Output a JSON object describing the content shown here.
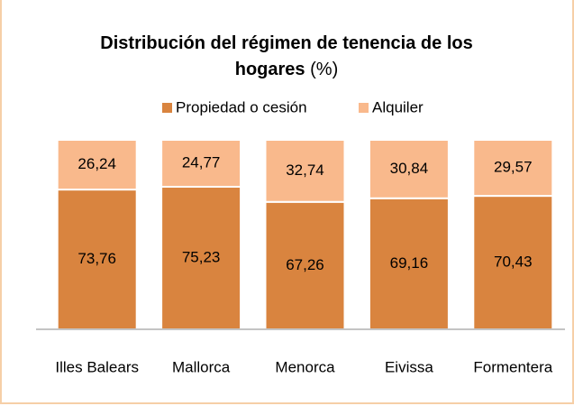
{
  "chart_data": {
    "type": "stacked_bar",
    "title": "Distribución del régimen de tenencia de los hogares",
    "unit": "(%)",
    "categories": [
      "Illes Balears",
      "Mallorca",
      "Menorca",
      "Eivissa",
      "Formentera"
    ],
    "series": [
      {
        "name": "Propiedad o cesión",
        "color": "#d9843f",
        "values": [
          73.76,
          75.23,
          67.26,
          69.16,
          70.43
        ],
        "value_labels": [
          "73,76",
          "75,23",
          "67,26",
          "69,16",
          "70,43"
        ]
      },
      {
        "name": "Alquiler",
        "color": "#f9b98c",
        "values": [
          26.24,
          24.77,
          32.74,
          30.84,
          29.57
        ],
        "value_labels": [
          "26,24",
          "24,77",
          "32,74",
          "30,84",
          "29,57"
        ]
      }
    ],
    "ylim": [
      0,
      100
    ],
    "legend": "top"
  }
}
